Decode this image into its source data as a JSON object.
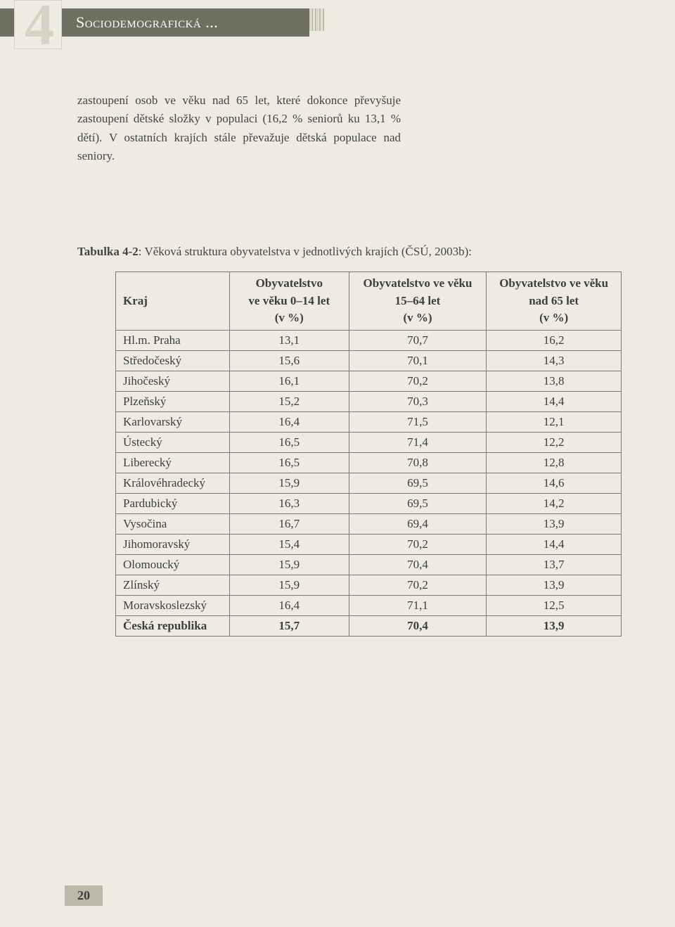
{
  "header": {
    "chapter_number": "4",
    "title": "Sociodemografická ..."
  },
  "body_text": "zastoupení osob ve věku nad 65 let, které dokonce převyšuje zastoupení dětské složky v populaci (16,2 % seniorů ku 13,1 % dětí). V ostatních krajích stále převažuje dětská populace nad seniory.",
  "table": {
    "caption_label": "Tabulka 4-2",
    "caption_text": ": Věková struktura obyvatelstva v jednotlivých krajích (ČSÚ, 2003b):",
    "columns": {
      "c0": "Kraj",
      "c1": "Obyvatelstvo\nve věku 0–14 let\n(v %)",
      "c2": "Obyvatelstvo ve věku\n15–64 let\n(v %)",
      "c3": "Obyvatelstvo ve věku\nnad 65 let\n(v %)"
    },
    "rows": [
      {
        "kraj": "Hl.m. Praha",
        "a": "13,1",
        "b": "70,7",
        "c": "16,2"
      },
      {
        "kraj": "Středočeský",
        "a": "15,6",
        "b": "70,1",
        "c": "14,3"
      },
      {
        "kraj": "Jihočeský",
        "a": "16,1",
        "b": "70,2",
        "c": "13,8"
      },
      {
        "kraj": "Plzeňský",
        "a": "15,2",
        "b": "70,3",
        "c": "14,4"
      },
      {
        "kraj": "Karlovarský",
        "a": "16,4",
        "b": "71,5",
        "c": "12,1"
      },
      {
        "kraj": "Ústecký",
        "a": "16,5",
        "b": "71,4",
        "c": "12,2"
      },
      {
        "kraj": "Liberecký",
        "a": "16,5",
        "b": "70,8",
        "c": "12,8"
      },
      {
        "kraj": "Královéhradecký",
        "a": "15,9",
        "b": "69,5",
        "c": "14,6"
      },
      {
        "kraj": "Pardubický",
        "a": "16,3",
        "b": "69,5",
        "c": "14,2"
      },
      {
        "kraj": "Vysočina",
        "a": "16,7",
        "b": "69,4",
        "c": "13,9"
      },
      {
        "kraj": "Jihomoravský",
        "a": "15,4",
        "b": "70,2",
        "c": "14,4"
      },
      {
        "kraj": "Olomoucký",
        "a": "15,9",
        "b": "70,4",
        "c": "13,7"
      },
      {
        "kraj": "Zlínský",
        "a": "15,9",
        "b": "70,2",
        "c": "13,9"
      },
      {
        "kraj": "Moravskoslezský",
        "a": "16,4",
        "b": "71,1",
        "c": "12,5"
      }
    ],
    "total": {
      "kraj": "Česká republika",
      "a": "15,7",
      "b": "70,4",
      "c": "13,9"
    }
  },
  "page_number": "20",
  "colors": {
    "page_bg": "#eeece2",
    "band_bg": "#6d705f",
    "accent_box": "#d6d3c5",
    "page_num_bg": "#bcb9a9",
    "text": "#3d3d3d",
    "border": "#7a7a7a"
  }
}
